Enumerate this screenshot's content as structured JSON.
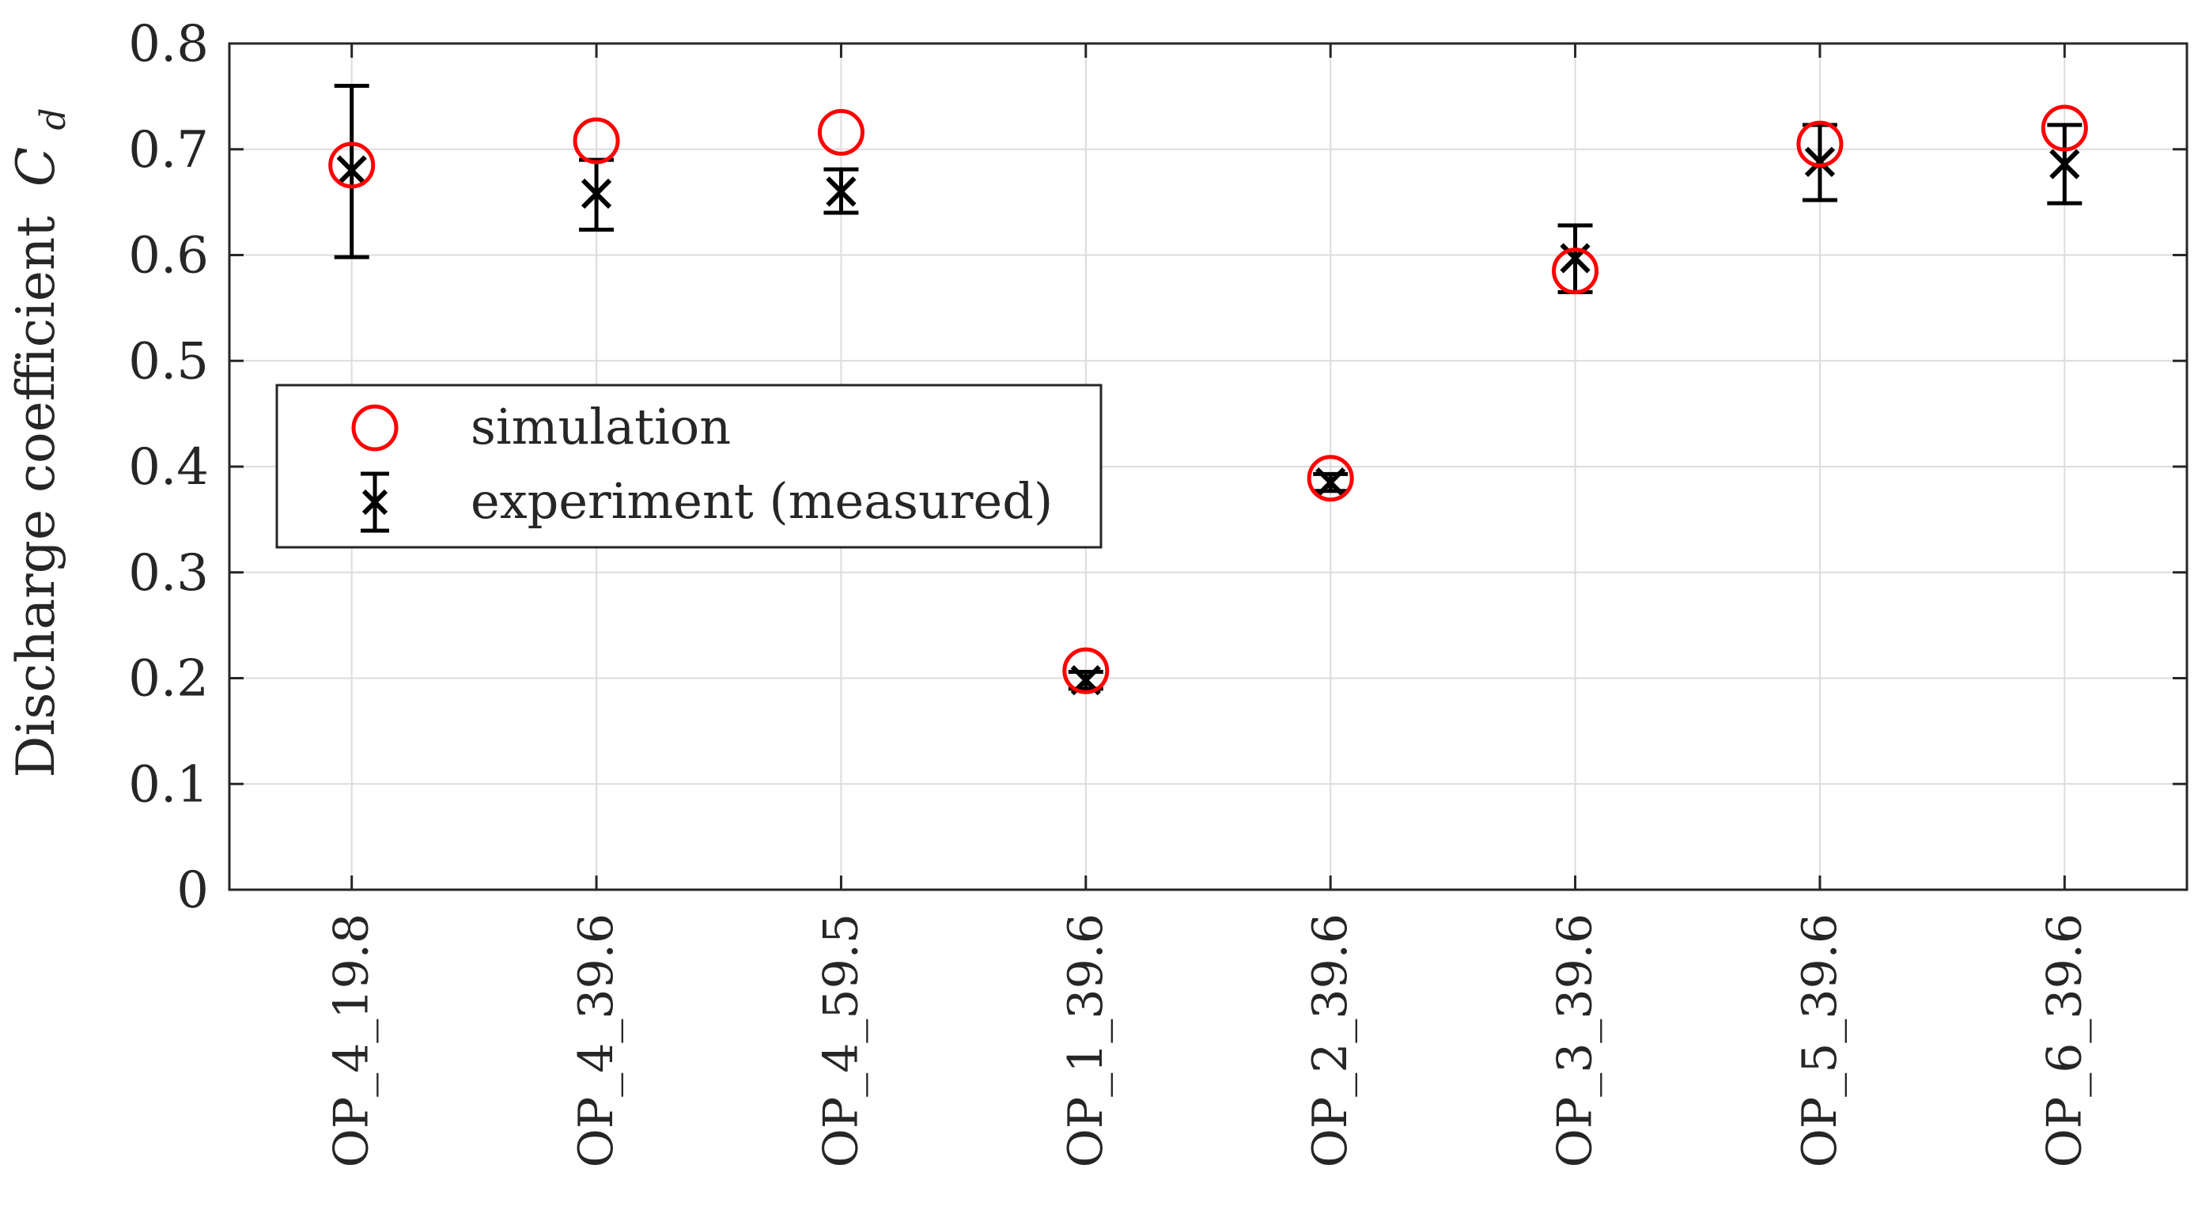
{
  "chart_data": {
    "type": "scatter",
    "categories": [
      "OP_4_19.8",
      "OP_4_39.6",
      "OP_4_59.5",
      "OP_1_39.6",
      "OP_2_39.6",
      "OP_3_39.6",
      "OP_5_39.6",
      "OP_6_39.6"
    ],
    "series": [
      {
        "name": "simulation",
        "marker": "circle",
        "color": "#ff0000",
        "values": [
          0.685,
          0.708,
          0.716,
          0.207,
          0.389,
          0.585,
          0.705,
          0.72
        ]
      },
      {
        "name": "experiment (measured)",
        "marker": "x-errorbar",
        "color": "#000000",
        "values": [
          0.68,
          0.658,
          0.66,
          0.198,
          0.385,
          0.597,
          0.688,
          0.686
        ],
        "error_low": [
          0.598,
          0.624,
          0.64,
          0.19,
          0.377,
          0.565,
          0.652,
          0.649
        ],
        "error_high": [
          0.76,
          0.69,
          0.681,
          0.206,
          0.393,
          0.628,
          0.723,
          0.723
        ]
      }
    ],
    "title": "",
    "xlabel": "",
    "ylabel": "Discharge coefficient",
    "ylabel_symbol": "C",
    "ylabel_subscript": "d",
    "ylim": [
      0,
      0.8
    ],
    "yticks": [
      "0",
      "0.1",
      "0.2",
      "0.3",
      "0.4",
      "0.5",
      "0.6",
      "0.7",
      "0.8"
    ],
    "grid": true,
    "legend_position": "center-left"
  }
}
